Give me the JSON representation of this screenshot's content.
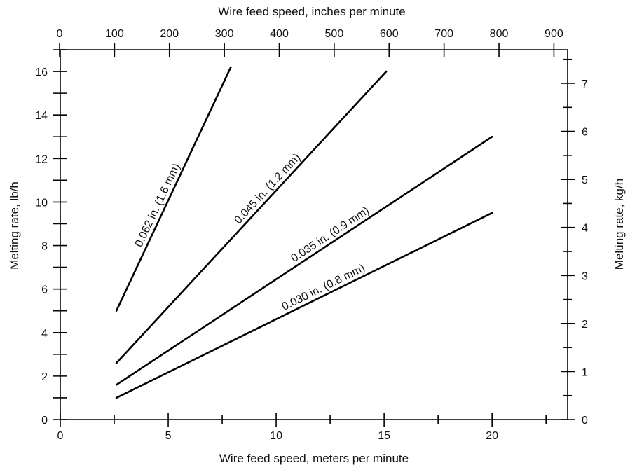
{
  "chart_data": {
    "type": "line",
    "title": "",
    "xlabel": "Wire feed speed, meters per minute",
    "ylabel": "Melting rate, lb/h",
    "x2label": "Wire feed speed, inches per minute",
    "y2label": "Melting rate, kg/h",
    "xlim": [
      0,
      23.5
    ],
    "ylim": [
      0,
      17
    ],
    "x2lim": [
      0,
      925
    ],
    "y2lim": [
      0,
      7.7
    ],
    "x_ticks": [
      0,
      5,
      10,
      15,
      20
    ],
    "y_ticks": [
      0,
      2,
      4,
      6,
      8,
      10,
      12,
      14,
      16
    ],
    "x2_ticks": [
      0,
      100,
      200,
      300,
      400,
      500,
      600,
      700,
      800,
      900
    ],
    "y2_ticks": [
      0,
      1,
      2,
      3,
      4,
      5,
      6,
      7
    ],
    "x_tick_labels": [
      "0",
      "5",
      "10",
      "15",
      "20"
    ],
    "y_tick_labels": [
      "0",
      "2",
      "4",
      "6",
      "8",
      "10",
      "12",
      "14",
      "16"
    ],
    "x2_tick_labels": [
      "0",
      "100",
      "200",
      "300",
      "400",
      "500",
      "600",
      "700",
      "800",
      "900"
    ],
    "y2_tick_labels": [
      "0",
      "1",
      "2",
      "3",
      "4",
      "5",
      "6",
      "7"
    ],
    "grid": false,
    "series": [
      {
        "name": "0.062 in. (1.6 mm)",
        "x": [
          2.6,
          7.9
        ],
        "y": [
          5.0,
          16.2
        ]
      },
      {
        "name": "0.045 in. (1.2 mm)",
        "x": [
          2.6,
          15.1
        ],
        "y": [
          2.6,
          16.0
        ]
      },
      {
        "name": "0.035 in. (0.9 mm)",
        "x": [
          2.6,
          20.0
        ],
        "y": [
          1.6,
          13.0
        ]
      },
      {
        "name": "0.030 in. (0.8 mm)",
        "x": [
          2.6,
          20.0
        ],
        "y": [
          1.0,
          9.5
        ]
      }
    ]
  },
  "colors": {
    "line": "#000000",
    "text": "#111111",
    "background": "#ffffff"
  }
}
